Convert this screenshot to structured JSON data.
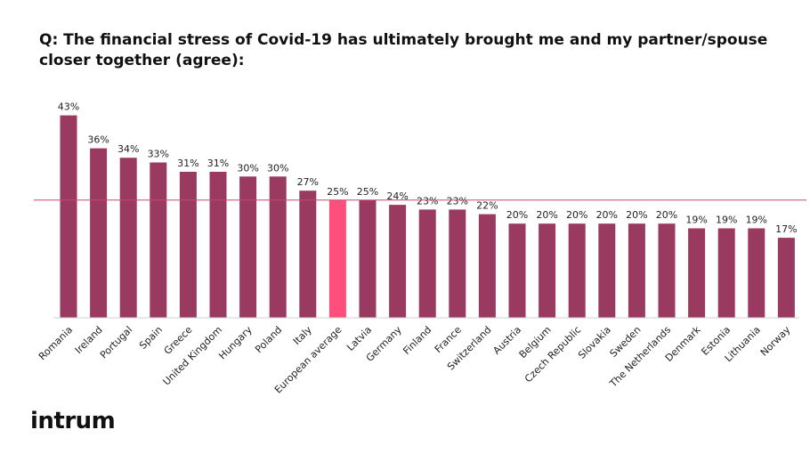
{
  "title": "Q: The financial stress of Covid-19 has ultimately brought me and my partner/spouse closer together (agree):",
  "logo": "intrum",
  "chart_data": {
    "type": "bar",
    "categories": [
      "Romania",
      "Ireland",
      "Portugal",
      "Spain",
      "Greece",
      "United Kingdom",
      "Hungary",
      "Poland",
      "Italy",
      "European average",
      "Latvia",
      "Germany",
      "Finland",
      "France",
      "Switzerland",
      "Austria",
      "Belgium",
      "Czech Republic",
      "Slovakia",
      "Sweden",
      "The Netherlands",
      "Denmark",
      "Estonia",
      "Lithuania",
      "Norway"
    ],
    "values": [
      43,
      36,
      34,
      33,
      31,
      31,
      30,
      30,
      27,
      25,
      25,
      24,
      23,
      23,
      22,
      20,
      20,
      20,
      20,
      20,
      20,
      19,
      19,
      19,
      17
    ],
    "labels": [
      "43%",
      "36%",
      "34%",
      "33%",
      "31%",
      "31%",
      "30%",
      "30%",
      "27%",
      "25%",
      "25%",
      "24%",
      "23%",
      "23%",
      "22%",
      "20%",
      "20%",
      "20%",
      "20%",
      "20%",
      "20%",
      "19%",
      "19%",
      "19%",
      "17%"
    ],
    "highlight_category": "European average",
    "reference_line_value": 25,
    "ylim": [
      0,
      45
    ],
    "grid": false,
    "colors": {
      "bar": "#9b3a60",
      "highlight": "#ff4f7a",
      "reference_line": "#c44a6b"
    }
  }
}
